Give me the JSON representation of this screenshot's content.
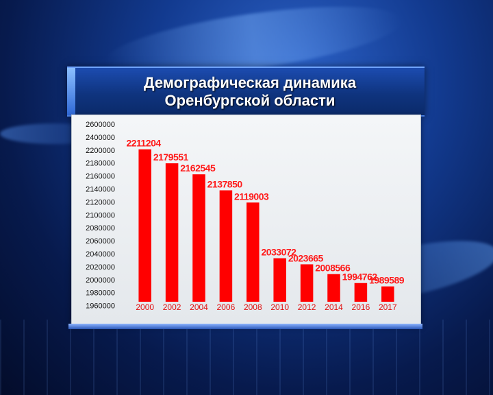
{
  "title": {
    "line1": "Демографическая динамика",
    "line2": "Оренбургской области"
  },
  "chart_data": {
    "type": "bar",
    "title": "Демографическая динамика Оренбургской области",
    "categories": [
      "2000",
      "2002",
      "2004",
      "2006",
      "2008",
      "2010",
      "2012",
      "2014",
      "2016",
      "2017"
    ],
    "values": [
      2211204,
      2179551,
      2162545,
      2137850,
      2119003,
      2033072,
      2023665,
      2008566,
      1994762,
      1989589
    ],
    "value_labels": [
      "2211204",
      "2179551",
      "2162545",
      "2137850",
      "2119003",
      "2033072",
      "2023665",
      "2008566",
      "1994762",
      "1989589"
    ],
    "yticks": [
      2600000,
      2400000,
      2200000,
      2180000,
      2160000,
      2140000,
      2120000,
      2100000,
      2080000,
      2060000,
      2040000,
      2020000,
      2000000,
      1980000,
      1960000
    ],
    "ytick_labels": [
      "2600000",
      "2400000",
      "2200000",
      "2180000",
      "2160000",
      "2140000",
      "2120000",
      "2100000",
      "2080000",
      "2060000",
      "2040000",
      "2020000",
      "2000000",
      "1980000",
      "1960000"
    ],
    "ylim": [
      1960000,
      2600000
    ],
    "xlabel": "",
    "ylabel": "",
    "grid": false,
    "bar_color": "#ff0000",
    "label_color": "#ff1a1a"
  }
}
